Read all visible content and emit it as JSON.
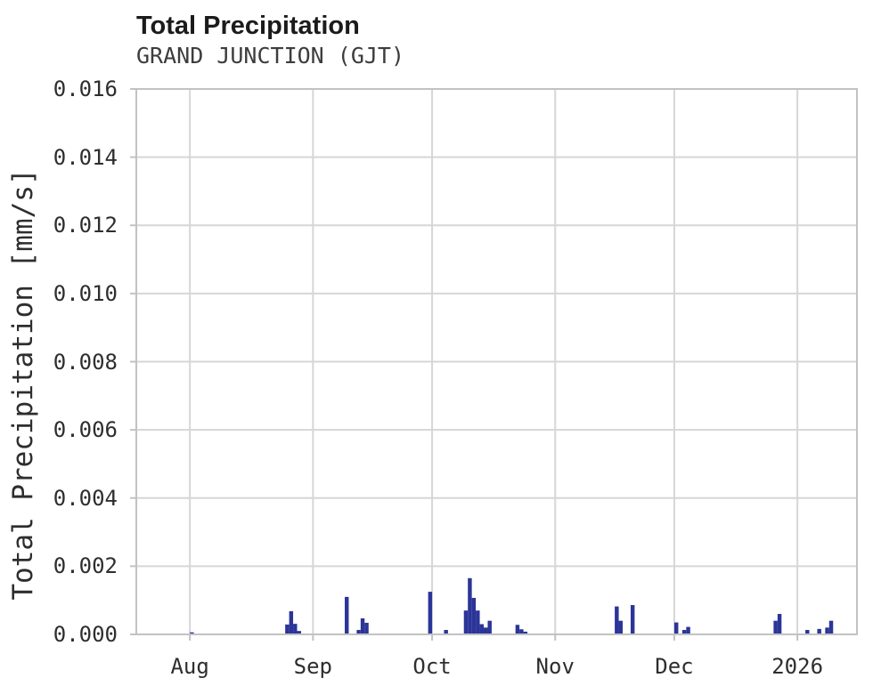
{
  "header": {
    "title": "Total Precipitation",
    "subtitle": "GRAND JUNCTION (GJT)"
  },
  "chart_data": {
    "type": "bar",
    "title": "Total Precipitation",
    "subtitle": "GRAND JUNCTION (GJT)",
    "xlabel": "",
    "ylabel": "Total Precipitation [mm/s]",
    "unit": "mm/s",
    "ylim": [
      0,
      0.016
    ],
    "grid": true,
    "legend_position": "none",
    "x_window": {
      "start": "2025-07-18T12:00:00",
      "end": "2026-01-16T00:00:00"
    },
    "yticks": [
      {
        "label": "0.000",
        "value": 0.0
      },
      {
        "label": "0.002",
        "value": 0.002
      },
      {
        "label": "0.004",
        "value": 0.004
      },
      {
        "label": "0.006",
        "value": 0.006
      },
      {
        "label": "0.008",
        "value": 0.008
      },
      {
        "label": "0.010",
        "value": 0.01
      },
      {
        "label": "0.012",
        "value": 0.012
      },
      {
        "label": "0.014",
        "value": 0.014
      },
      {
        "label": "0.016",
        "value": 0.016
      }
    ],
    "xticks": [
      {
        "label": "Aug",
        "date": "2025-08-01"
      },
      {
        "label": "Sep",
        "date": "2025-09-01"
      },
      {
        "label": "Oct",
        "date": "2025-10-01"
      },
      {
        "label": "Nov",
        "date": "2025-11-01"
      },
      {
        "label": "Dec",
        "date": "2025-12-01"
      },
      {
        "label": "2026",
        "date": "2026-01-01"
      }
    ],
    "bar_width_days": 1,
    "series": [
      {
        "name": "Total Precipitation",
        "points": [
          {
            "date": "2025-08-01",
            "value": 6e-05
          },
          {
            "date": "2025-08-25",
            "value": 0.00029
          },
          {
            "date": "2025-08-26",
            "value": 0.00068
          },
          {
            "date": "2025-08-27",
            "value": 0.00031
          },
          {
            "date": "2025-08-28",
            "value": 0.0001
          },
          {
            "date": "2025-09-09",
            "value": 0.0011
          },
          {
            "date": "2025-09-12",
            "value": 0.00013
          },
          {
            "date": "2025-09-13",
            "value": 0.00047
          },
          {
            "date": "2025-09-14",
            "value": 0.00034
          },
          {
            "date": "2025-09-30",
            "value": 0.00125
          },
          {
            "date": "2025-10-04",
            "value": 0.00013
          },
          {
            "date": "2025-10-09",
            "value": 0.0007
          },
          {
            "date": "2025-10-10",
            "value": 0.00165
          },
          {
            "date": "2025-10-11",
            "value": 0.00107
          },
          {
            "date": "2025-10-12",
            "value": 0.0007
          },
          {
            "date": "2025-10-13",
            "value": 0.0003
          },
          {
            "date": "2025-10-14",
            "value": 0.0002
          },
          {
            "date": "2025-10-15",
            "value": 0.0004
          },
          {
            "date": "2025-10-22",
            "value": 0.00028
          },
          {
            "date": "2025-10-23",
            "value": 0.00015
          },
          {
            "date": "2025-10-24",
            "value": 8e-05
          },
          {
            "date": "2025-11-16",
            "value": 0.00082
          },
          {
            "date": "2025-11-17",
            "value": 0.0004
          },
          {
            "date": "2025-11-20",
            "value": 0.00086
          },
          {
            "date": "2025-12-01",
            "value": 0.00035
          },
          {
            "date": "2025-12-03",
            "value": 0.00013
          },
          {
            "date": "2025-12-04",
            "value": 0.00022
          },
          {
            "date": "2025-12-26",
            "value": 0.0004
          },
          {
            "date": "2025-12-27",
            "value": 0.0006
          },
          {
            "date": "2026-01-03",
            "value": 0.00013
          },
          {
            "date": "2026-01-06",
            "value": 0.00016
          },
          {
            "date": "2026-01-08",
            "value": 0.0002
          },
          {
            "date": "2026-01-09",
            "value": 0.0004
          }
        ]
      }
    ],
    "colors": {
      "bar": "#2b3598",
      "grid": "#d6d6d6",
      "border": "#c2c2c2",
      "title_text": "#1b1b1b",
      "subtitle_text": "#3d3d3d",
      "tick_text": "#2e2e2e",
      "background": "#ffffff"
    }
  }
}
